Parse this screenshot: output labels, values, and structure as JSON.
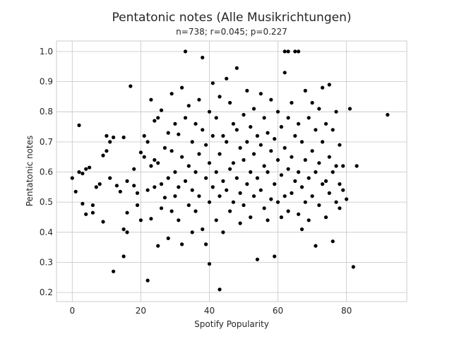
{
  "chart_data": {
    "type": "scatter",
    "title": "Pentatonic notes (Alle Musikrichtungen)",
    "subtitle": "n=738; r=0.045; p=0.227",
    "xlabel": "Spotify Popularity",
    "ylabel": "Pentatonic notes",
    "xlim": [
      -4.6,
      97.6
    ],
    "ylim": [
      0.17,
      1.035
    ],
    "xticks": [
      0,
      20,
      40,
      60,
      80
    ],
    "yticks": [
      0.2,
      0.3,
      0.4,
      0.5,
      0.6,
      0.7,
      0.8,
      0.9,
      1.0
    ],
    "ytick_labels": [
      "0.2",
      "0.3",
      "0.4",
      "0.5",
      "0.6",
      "0.7",
      "0.8",
      "0.9",
      "1.0"
    ],
    "grid": true,
    "marker_color": "#000000",
    "points": [
      [
        0,
        0.58
      ],
      [
        1,
        0.535
      ],
      [
        2,
        0.755
      ],
      [
        2,
        0.6
      ],
      [
        3,
        0.595
      ],
      [
        3,
        0.495
      ],
      [
        4,
        0.46
      ],
      [
        4,
        0.61
      ],
      [
        5,
        0.615
      ],
      [
        6,
        0.49
      ],
      [
        6,
        0.465
      ],
      [
        7,
        0.55
      ],
      [
        8,
        0.56
      ],
      [
        9,
        0.655
      ],
      [
        9,
        0.435
      ],
      [
        10,
        0.72
      ],
      [
        10,
        0.67
      ],
      [
        11,
        0.58
      ],
      [
        11,
        0.7
      ],
      [
        12,
        0.715
      ],
      [
        12,
        0.27
      ],
      [
        13,
        0.555
      ],
      [
        14,
        0.535
      ],
      [
        15,
        0.715
      ],
      [
        15,
        0.41
      ],
      [
        15,
        0.32
      ],
      [
        16,
        0.57
      ],
      [
        16,
        0.465
      ],
      [
        16,
        0.4
      ],
      [
        17,
        0.885
      ],
      [
        18,
        0.61
      ],
      [
        18,
        0.555
      ],
      [
        19,
        0.53
      ],
      [
        19,
        0.49
      ],
      [
        20,
        0.665
      ],
      [
        20,
        0.44
      ],
      [
        21,
        0.72
      ],
      [
        21,
        0.65
      ],
      [
        22,
        0.7
      ],
      [
        22,
        0.54
      ],
      [
        22,
        0.24
      ],
      [
        23,
        0.84
      ],
      [
        23,
        0.62
      ],
      [
        23,
        0.445
      ],
      [
        24,
        0.77
      ],
      [
        24,
        0.64
      ],
      [
        24,
        0.55
      ],
      [
        25,
        0.78
      ],
      [
        25,
        0.63
      ],
      [
        25,
        0.355
      ],
      [
        26,
        0.805
      ],
      [
        26,
        0.56
      ],
      [
        26,
        0.48
      ],
      [
        27,
        0.68
      ],
      [
        27,
        0.515
      ],
      [
        28,
        0.73
      ],
      [
        28,
        0.58
      ],
      [
        28,
        0.38
      ],
      [
        29,
        0.86
      ],
      [
        29,
        0.67
      ],
      [
        29,
        0.47
      ],
      [
        30,
        0.76
      ],
      [
        30,
        0.6
      ],
      [
        30,
        0.52
      ],
      [
        31,
        0.725
      ],
      [
        31,
        0.55
      ],
      [
        31,
        0.44
      ],
      [
        32,
        0.88
      ],
      [
        32,
        0.65
      ],
      [
        32,
        0.36
      ],
      [
        33,
        1.0
      ],
      [
        33,
        0.78
      ],
      [
        33,
        0.57
      ],
      [
        34,
        0.82
      ],
      [
        34,
        0.62
      ],
      [
        34,
        0.49
      ],
      [
        35,
        0.7
      ],
      [
        35,
        0.54
      ],
      [
        35,
        0.4
      ],
      [
        36,
        0.76
      ],
      [
        36,
        0.6
      ],
      [
        36,
        0.47
      ],
      [
        37,
        0.84
      ],
      [
        37,
        0.66
      ],
      [
        37,
        0.52
      ],
      [
        38,
        0.98
      ],
      [
        38,
        0.74
      ],
      [
        38,
        0.41
      ],
      [
        39,
        0.69
      ],
      [
        39,
        0.58
      ],
      [
        39,
        0.36
      ],
      [
        40,
        0.8
      ],
      [
        40,
        0.63
      ],
      [
        40,
        0.5
      ],
      [
        40,
        0.295
      ],
      [
        41,
        0.895
      ],
      [
        41,
        0.72
      ],
      [
        41,
        0.55
      ],
      [
        42,
        0.78
      ],
      [
        42,
        0.6
      ],
      [
        42,
        0.44
      ],
      [
        43,
        0.85
      ],
      [
        43,
        0.66
      ],
      [
        43,
        0.52
      ],
      [
        43,
        0.21
      ],
      [
        44,
        0.72
      ],
      [
        44,
        0.57
      ],
      [
        44,
        0.4
      ],
      [
        45,
        0.91
      ],
      [
        45,
        0.7
      ],
      [
        45,
        0.54
      ],
      [
        46,
        0.83
      ],
      [
        46,
        0.61
      ],
      [
        46,
        0.47
      ],
      [
        47,
        0.76
      ],
      [
        47,
        0.63
      ],
      [
        47,
        0.5
      ],
      [
        48,
        0.945
      ],
      [
        48,
        0.74
      ],
      [
        48,
        0.58
      ],
      [
        49,
        0.68
      ],
      [
        49,
        0.53
      ],
      [
        49,
        0.43
      ],
      [
        50,
        0.79
      ],
      [
        50,
        0.64
      ],
      [
        50,
        0.49
      ],
      [
        51,
        0.87
      ],
      [
        51,
        0.7
      ],
      [
        51,
        0.56
      ],
      [
        52,
        0.75
      ],
      [
        52,
        0.6
      ],
      [
        52,
        0.45
      ],
      [
        53,
        0.81
      ],
      [
        53,
        0.66
      ],
      [
        53,
        0.52
      ],
      [
        54,
        0.72
      ],
      [
        54,
        0.58
      ],
      [
        54,
        0.31
      ],
      [
        55,
        0.86
      ],
      [
        55,
        0.69
      ],
      [
        55,
        0.54
      ],
      [
        56,
        0.78
      ],
      [
        56,
        0.62
      ],
      [
        56,
        0.48
      ],
      [
        57,
        0.73
      ],
      [
        57,
        0.6
      ],
      [
        57,
        0.44
      ],
      [
        58,
        0.84
      ],
      [
        58,
        0.67
      ],
      [
        58,
        0.51
      ],
      [
        59,
        0.71
      ],
      [
        59,
        0.56
      ],
      [
        59,
        0.32
      ],
      [
        60,
        0.8
      ],
      [
        60,
        0.64
      ],
      [
        60,
        0.5
      ],
      [
        61,
        0.75
      ],
      [
        61,
        0.59
      ],
      [
        61,
        0.45
      ],
      [
        62,
        1.0
      ],
      [
        62,
        0.93
      ],
      [
        62,
        0.68
      ],
      [
        62,
        0.52
      ],
      [
        63,
        1.0
      ],
      [
        63,
        0.78
      ],
      [
        63,
        0.61
      ],
      [
        63,
        0.47
      ],
      [
        64,
        0.83
      ],
      [
        64,
        0.65
      ],
      [
        64,
        0.53
      ],
      [
        65,
        1.0
      ],
      [
        65,
        0.72
      ],
      [
        65,
        0.57
      ],
      [
        66,
        1.0
      ],
      [
        66,
        0.76
      ],
      [
        66,
        0.6
      ],
      [
        66,
        0.46
      ],
      [
        67,
        0.7
      ],
      [
        67,
        0.55
      ],
      [
        67,
        0.41
      ],
      [
        68,
        0.87
      ],
      [
        68,
        0.64
      ],
      [
        68,
        0.5
      ],
      [
        69,
        0.78
      ],
      [
        69,
        0.58
      ],
      [
        69,
        0.44
      ],
      [
        70,
        0.83
      ],
      [
        70,
        0.67
      ],
      [
        70,
        0.52
      ],
      [
        71,
        0.74
      ],
      [
        71,
        0.6
      ],
      [
        71,
        0.355
      ],
      [
        72,
        0.81
      ],
      [
        72,
        0.63
      ],
      [
        72,
        0.49
      ],
      [
        73,
        0.88
      ],
      [
        73,
        0.7
      ],
      [
        73,
        0.56
      ],
      [
        74,
        0.76
      ],
      [
        74,
        0.57
      ],
      [
        74,
        0.45
      ],
      [
        75,
        0.89
      ],
      [
        75,
        0.65
      ],
      [
        75,
        0.53
      ],
      [
        76,
        0.74
      ],
      [
        76,
        0.6
      ],
      [
        76,
        0.37
      ],
      [
        77,
        0.8
      ],
      [
        77,
        0.62
      ],
      [
        77,
        0.5
      ],
      [
        78,
        0.69
      ],
      [
        78,
        0.56
      ],
      [
        78,
        0.48
      ],
      [
        79,
        0.62
      ],
      [
        79,
        0.54
      ],
      [
        80,
        0.51
      ],
      [
        81,
        0.81
      ],
      [
        82,
        0.285
      ],
      [
        83,
        0.62
      ],
      [
        92,
        0.79
      ]
    ]
  }
}
